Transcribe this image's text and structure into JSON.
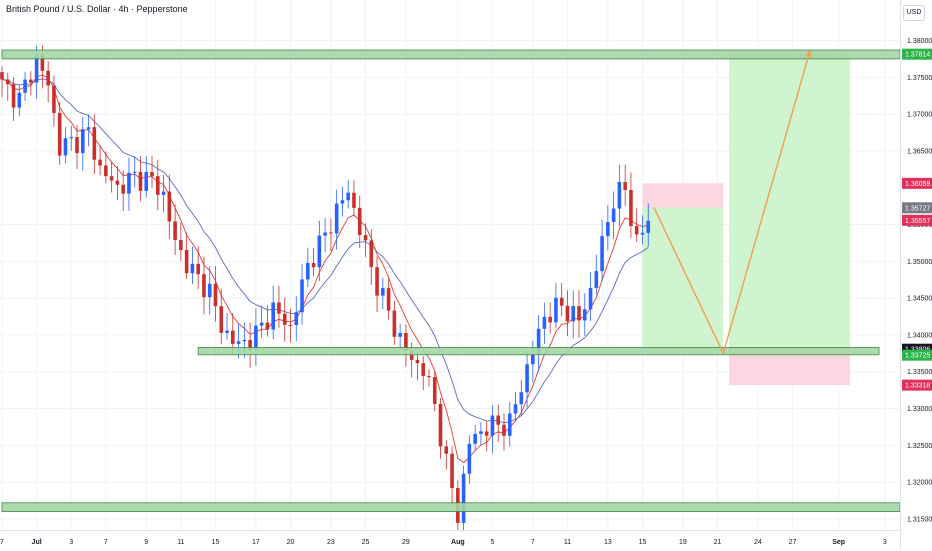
{
  "header": {
    "title": "British Pound / U.S. Dollar · 4h · Pepperstone",
    "currency": "USD"
  },
  "colors": {
    "up": "#2962ff",
    "down": "#c9302c",
    "zone_fill": "#a5d6a7",
    "zone_border": "#2e7d32",
    "target_fill": "#c8f2c4",
    "stop_fill": "#fbd0dc",
    "ema_fast": "#e53935",
    "ema_slow": "#5c6bc0",
    "path": "#f0a050"
  },
  "chart_data": {
    "type": "candlestick",
    "symbol": "GBPUSD",
    "timeframe": "4h",
    "ylim": [
      1.3135,
      1.3855
    ],
    "y_ticks": [
      {
        "value": 1.38,
        "label": "1.38000"
      },
      {
        "value": 1.375,
        "label": "1.37500"
      },
      {
        "value": 1.37,
        "label": "1.37000"
      },
      {
        "value": 1.365,
        "label": "1.36500"
      },
      {
        "value": 1.355,
        "label": "1.35500"
      },
      {
        "value": 1.35,
        "label": "1.35000"
      },
      {
        "value": 1.345,
        "label": "1.34500"
      },
      {
        "value": 1.34,
        "label": "1.34000"
      },
      {
        "value": 1.335,
        "label": "1.33500"
      },
      {
        "value": 1.33,
        "label": "1.33000"
      },
      {
        "value": 1.325,
        "label": "1.32500"
      },
      {
        "value": 1.32,
        "label": "1.32000"
      },
      {
        "value": 1.315,
        "label": "1.31500"
      }
    ],
    "price_badges": [
      {
        "value": 1.37814,
        "label": "1.37814",
        "color": "#2db34a"
      },
      {
        "value": 1.36059,
        "label": "1.36059",
        "color": "#e0315b"
      },
      {
        "value": 1.35727,
        "label": "1.35727",
        "color": "#787b86"
      },
      {
        "value": 1.35557,
        "label": "1.35557",
        "color": "#e0315b"
      },
      {
        "value": 1.33806,
        "label": "1.33806",
        "color": "#131722"
      },
      {
        "value": 1.33725,
        "label": "1.33725",
        "color": "#2db34a"
      },
      {
        "value": 1.33318,
        "label": "1.33318",
        "color": "#e0315b"
      }
    ],
    "x_ticks": [
      {
        "bar": 0,
        "label": "7"
      },
      {
        "bar": 6,
        "label": "Jul"
      },
      {
        "bar": 12,
        "label": "3"
      },
      {
        "bar": 18,
        "label": "7"
      },
      {
        "bar": 25,
        "label": "9"
      },
      {
        "bar": 31,
        "label": "11"
      },
      {
        "bar": 37,
        "label": "15"
      },
      {
        "bar": 44,
        "label": "17"
      },
      {
        "bar": 50,
        "label": "20"
      },
      {
        "bar": 57,
        "label": "23"
      },
      {
        "bar": 63,
        "label": "25"
      },
      {
        "bar": 70,
        "label": "29"
      },
      {
        "bar": 79,
        "label": "Aug"
      },
      {
        "bar": 85,
        "label": "5"
      },
      {
        "bar": 92,
        "label": "7"
      },
      {
        "bar": 98,
        "label": "11"
      },
      {
        "bar": 105,
        "label": "13"
      },
      {
        "bar": 111,
        "label": "15"
      },
      {
        "bar": 118,
        "label": "19"
      },
      {
        "bar": 124,
        "label": "21"
      },
      {
        "bar": 131,
        "label": "24"
      },
      {
        "bar": 137,
        "label": "27"
      },
      {
        "bar": 145,
        "label": "Sep"
      },
      {
        "bar": 153,
        "label": "3"
      }
    ],
    "anchors": [
      [
        0,
        1.374
      ],
      [
        3,
        1.372
      ],
      [
        6,
        1.3775
      ],
      [
        8,
        1.374
      ],
      [
        10,
        1.3655
      ],
      [
        13,
        1.3665
      ],
      [
        15,
        1.3675
      ],
      [
        17,
        1.3625
      ],
      [
        20,
        1.36
      ],
      [
        23,
        1.3615
      ],
      [
        26,
        1.361
      ],
      [
        28,
        1.359
      ],
      [
        30,
        1.3525
      ],
      [
        33,
        1.3485
      ],
      [
        36,
        1.346
      ],
      [
        38,
        1.341
      ],
      [
        41,
        1.3385
      ],
      [
        44,
        1.34
      ],
      [
        47,
        1.3435
      ],
      [
        50,
        1.341
      ],
      [
        53,
        1.3495
      ],
      [
        56,
        1.3535
      ],
      [
        58,
        1.357
      ],
      [
        60,
        1.3595
      ],
      [
        62,
        1.3545
      ],
      [
        64,
        1.349
      ],
      [
        66,
        1.345
      ],
      [
        68,
        1.341
      ],
      [
        71,
        1.3365
      ],
      [
        73,
        1.3355
      ],
      [
        75,
        1.3305
      ],
      [
        77,
        1.3225
      ],
      [
        79,
        1.3155
      ],
      [
        81,
        1.3255
      ],
      [
        84,
        1.3275
      ],
      [
        88,
        1.328
      ],
      [
        91,
        1.3355
      ],
      [
        94,
        1.3425
      ],
      [
        97,
        1.344
      ],
      [
        100,
        1.342
      ],
      [
        102,
        1.346
      ],
      [
        104,
        1.3525
      ],
      [
        106,
        1.3585
      ],
      [
        108,
        1.3598
      ],
      [
        110,
        1.3525
      ],
      [
        112,
        1.3555
      ]
    ],
    "support_zones": [
      {
        "label": "resistance",
        "top": 1.3787,
        "bottom": 1.3775,
        "from_bar": 0,
        "to_bar": 162
      },
      {
        "label": "support",
        "top": 1.3383,
        "bottom": 1.3373,
        "from_bar": 34,
        "to_bar": 152
      },
      {
        "label": "base",
        "top": 1.3172,
        "bottom": 1.316,
        "from_bar": 0,
        "to_bar": 162
      }
    ],
    "positions": [
      {
        "type": "short",
        "from_bar": 111,
        "to_bar": 125,
        "entry": 1.3573,
        "stop": 1.3606,
        "target": 1.33806
      },
      {
        "type": "long",
        "from_bar": 126,
        "to_bar": 147,
        "entry": 1.33806,
        "stop": 1.33318,
        "target": 1.37814
      }
    ],
    "projection": [
      [
        113,
        1.3573
      ],
      [
        125,
        1.3375
      ],
      [
        140,
        1.3785
      ]
    ]
  }
}
